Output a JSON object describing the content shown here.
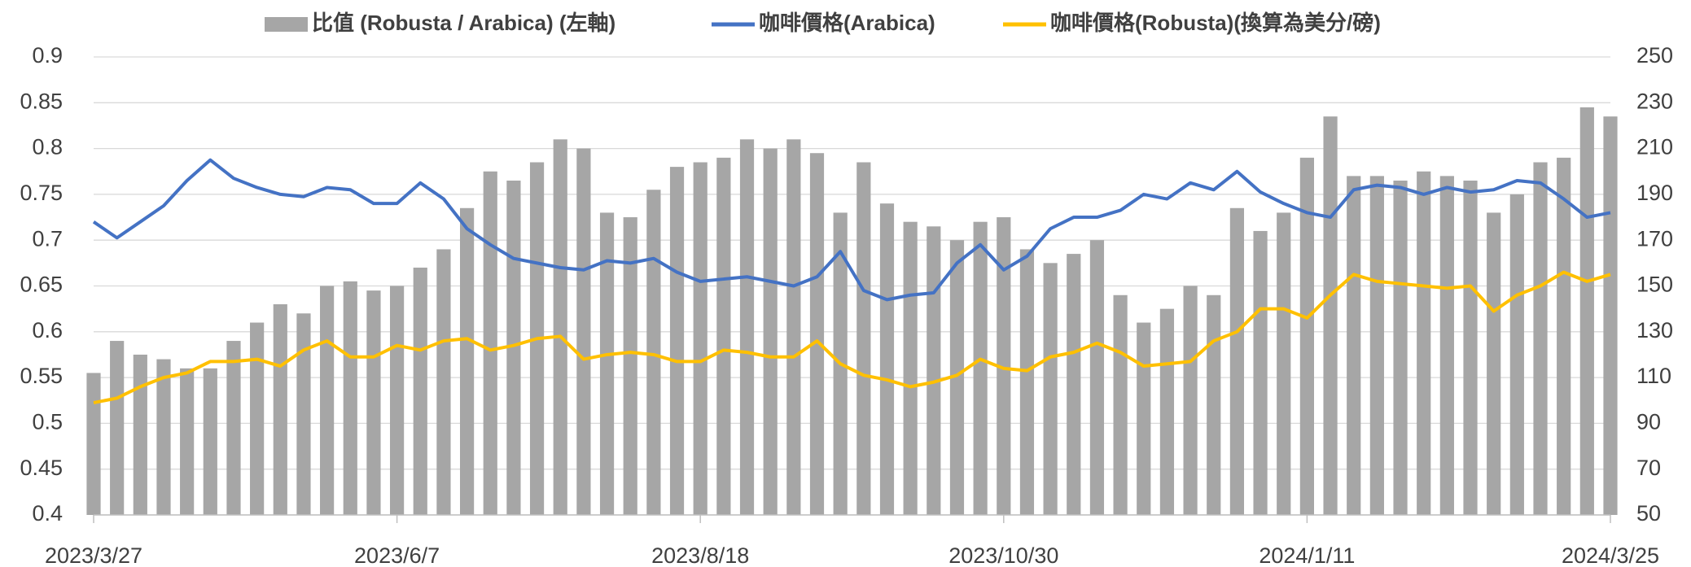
{
  "chart_data": {
    "type": "bar",
    "categories": [
      "2023/3/27",
      null,
      null,
      null,
      null,
      null,
      null,
      null,
      null,
      null,
      null,
      null,
      null,
      "2023/6/7",
      null,
      null,
      null,
      null,
      null,
      null,
      null,
      null,
      null,
      null,
      null,
      null,
      "2023/8/18",
      null,
      null,
      null,
      null,
      null,
      null,
      null,
      null,
      null,
      null,
      null,
      null,
      "2023/10/30",
      null,
      null,
      null,
      null,
      null,
      null,
      null,
      null,
      null,
      null,
      null,
      null,
      "2024/1/11",
      null,
      null,
      null,
      null,
      null,
      null,
      null,
      null,
      null,
      null,
      null,
      null,
      "2024/3/25"
    ],
    "series": [
      {
        "name": "比值 (Robusta / Arabica) (左軸)",
        "type": "bar",
        "color": "#a6a6a6",
        "values": [
          0.555,
          0.59,
          0.575,
          0.57,
          0.56,
          0.56,
          0.59,
          0.61,
          0.63,
          0.62,
          0.65,
          0.655,
          0.645,
          0.65,
          0.67,
          0.69,
          0.735,
          0.775,
          0.765,
          0.785,
          0.81,
          0.8,
          0.73,
          0.725,
          0.755,
          0.78,
          0.785,
          0.79,
          0.81,
          0.8,
          0.81,
          0.795,
          0.73,
          0.785,
          0.74,
          0.72,
          0.715,
          0.7,
          0.72,
          0.725,
          0.69,
          0.675,
          0.685,
          0.7,
          0.64,
          0.61,
          0.625,
          0.65,
          0.64,
          0.735,
          0.71,
          0.73,
          0.79,
          0.835,
          0.77,
          0.77,
          0.765,
          0.775,
          0.77,
          0.765,
          0.73,
          0.75,
          0.785,
          0.79,
          0.845,
          0.835
        ]
      },
      {
        "name": "咖啡價格(Arabica)",
        "type": "line",
        "axis": "y2",
        "color": "#4472c4",
        "values": [
          178,
          171,
          178,
          185,
          196,
          205,
          197,
          193,
          190,
          189,
          193,
          192,
          186,
          186,
          195,
          188,
          175,
          168,
          162,
          160,
          158,
          157,
          161,
          160,
          162,
          156,
          152,
          153,
          154,
          152,
          150,
          154,
          165,
          148,
          144,
          146,
          147,
          160,
          168,
          157,
          163,
          175,
          180,
          180,
          183,
          190,
          188,
          195,
          192,
          200,
          191,
          186,
          182,
          180,
          192,
          194,
          193,
          190,
          193,
          191,
          192,
          196,
          195,
          188,
          180,
          182
        ]
      },
      {
        "name": "咖啡價格(Robusta)(換算為美分/磅)",
        "type": "line",
        "axis": "y2",
        "color": "#ffc000",
        "values": [
          99,
          101,
          106,
          110,
          112,
          117,
          117,
          118,
          115,
          122,
          126,
          119,
          119,
          124,
          122,
          126,
          127,
          122,
          124,
          127,
          128,
          118,
          120,
          121,
          120,
          117,
          117,
          122,
          121,
          119,
          119,
          126,
          116,
          111,
          109,
          106,
          108,
          111,
          118,
          114,
          113,
          119,
          121,
          125,
          121,
          115,
          116,
          117,
          126,
          130,
          140,
          140,
          136,
          146,
          155,
          152,
          151,
          150,
          149,
          150,
          139,
          146,
          150,
          156,
          152,
          155
        ]
      }
    ],
    "ylim": [
      0.4,
      0.9
    ],
    "yticks": [
      0.4,
      0.45,
      0.5,
      0.55,
      0.6,
      0.65,
      0.7,
      0.75,
      0.8,
      0.85,
      0.9
    ],
    "y2lim": [
      50,
      250
    ],
    "y2ticks": [
      50,
      70,
      90,
      110,
      130,
      150,
      170,
      190,
      210,
      230,
      250
    ],
    "grid": true,
    "legend": "top"
  }
}
